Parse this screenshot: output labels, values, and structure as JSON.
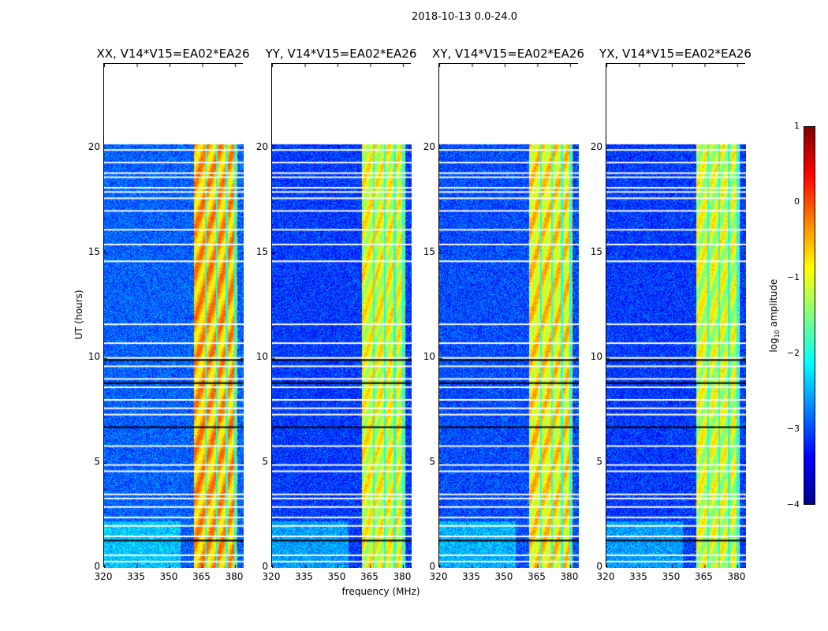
{
  "chart_data": {
    "type": "heatmap",
    "title": "2018-10-13 0.0-24.0",
    "xlabel": "frequency (MHz)",
    "ylabel": "UT (hours)",
    "xlim": [
      320,
      384
    ],
    "ylim": [
      0,
      24
    ],
    "xticks": [
      "320",
      "335",
      "350",
      "365",
      "380"
    ],
    "yticks": [
      "0",
      "5",
      "10",
      "15",
      "20"
    ],
    "data_time_range": [
      0,
      20.2
    ],
    "panels": [
      {
        "title": "XX, V14*V15=EA02*EA26",
        "band_level": 0.0,
        "background_level": -2.9
      },
      {
        "title": "YY, V14*V15=EA02*EA26",
        "band_level": -0.5,
        "background_level": -3.1
      },
      {
        "title": "XY, V14*V15=EA02*EA26",
        "band_level": -0.3,
        "background_level": -3.0
      },
      {
        "title": "YX, V14*V15=EA02*EA26",
        "band_level": -0.6,
        "background_level": -3.1
      }
    ],
    "band_mhz": [
      361,
      381
    ],
    "band_gaps_mhz": [
      366.5,
      371.5,
      376,
      380
    ],
    "flagged_times_white": [
      0.3,
      0.6,
      1.5,
      2.0,
      2.4,
      2.9,
      3.3,
      3.5,
      4.6,
      4.9,
      5.8,
      7.3,
      7.6,
      8.0,
      8.6,
      9.0,
      9.6,
      10.0,
      10.7,
      11.6,
      14.6,
      15.4,
      16.1,
      17.0,
      17.6,
      17.9,
      18.1,
      18.6,
      18.8,
      19.3,
      19.9
    ],
    "flagged_times_black": [
      1.3,
      6.7,
      8.8,
      9.9
    ],
    "colorbar": {
      "label": "log10 amplitude",
      "range": [
        -4,
        1
      ],
      "ticks": [
        "1",
        "0",
        "−1",
        "−2",
        "−3",
        "−4"
      ],
      "colormap": "jet"
    }
  }
}
